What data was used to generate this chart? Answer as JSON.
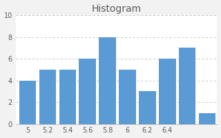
{
  "title": "Histogram",
  "values": [
    4,
    5,
    5,
    6,
    8,
    5,
    3,
    6,
    7,
    1
  ],
  "bar_positions": [
    0,
    1,
    2,
    3,
    4,
    5,
    6,
    7,
    8,
    9
  ],
  "xtick_positions": [
    0,
    1,
    2,
    3,
    4,
    5,
    6,
    7
  ],
  "xtick_labels": [
    "5",
    "5.2",
    "5.4",
    "5.6",
    "5.8",
    "6",
    "6.2",
    "6.4"
  ],
  "bar_color": "#5B9BD5",
  "background_color": "#f2f2f2",
  "plot_bg_color": "#ffffff",
  "bar_width": 0.85,
  "ylim": [
    0,
    10
  ],
  "yticks": [
    0,
    2,
    4,
    6,
    8,
    10
  ],
  "grid_color": "#bfbfbf",
  "title_fontsize": 10,
  "tick_fontsize": 7,
  "title_color": "#595959"
}
